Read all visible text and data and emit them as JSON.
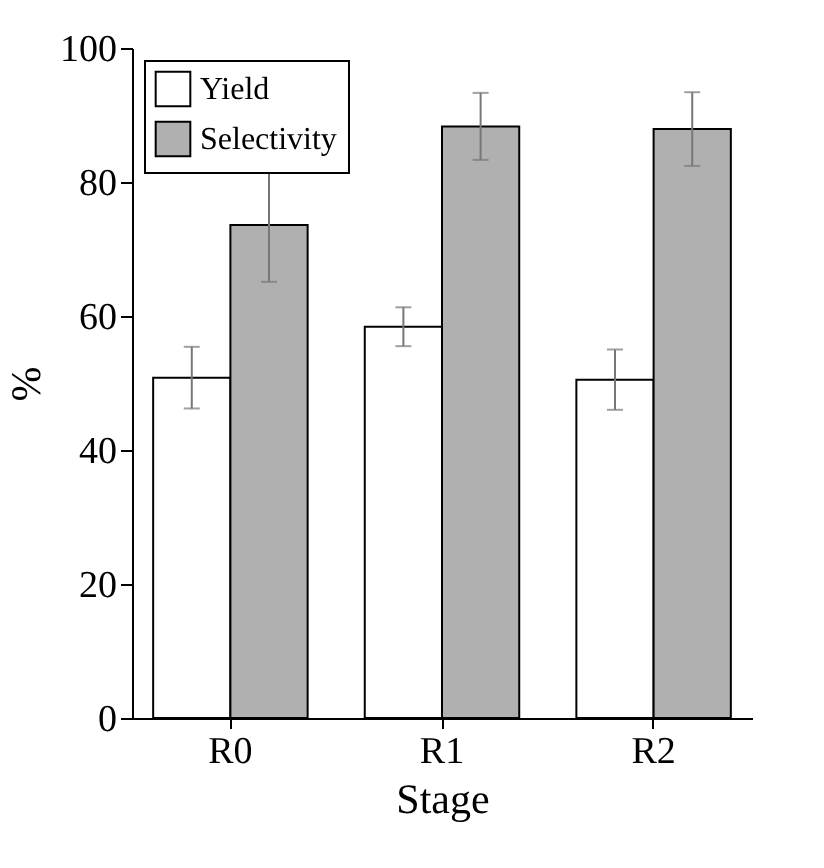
{
  "chart_data": {
    "type": "bar",
    "xlabel": "Stage",
    "ylabel": "%",
    "categories": [
      "R0",
      "R1",
      "R2"
    ],
    "series": [
      {
        "name": "Yield",
        "color": "#ffffff",
        "values": [
          50.8,
          58.4,
          50.5
        ],
        "errors": [
          4.6,
          2.9,
          4.5
        ]
      },
      {
        "name": "Selectivity",
        "color": "#b0b0b0",
        "values": [
          73.6,
          88.3,
          87.9
        ],
        "errors": [
          8.5,
          5,
          5.5
        ]
      }
    ],
    "ylim": [
      0,
      100
    ],
    "yticks": [
      0,
      20,
      40,
      60,
      80,
      100
    ],
    "legend": "top left",
    "grid": false
  }
}
